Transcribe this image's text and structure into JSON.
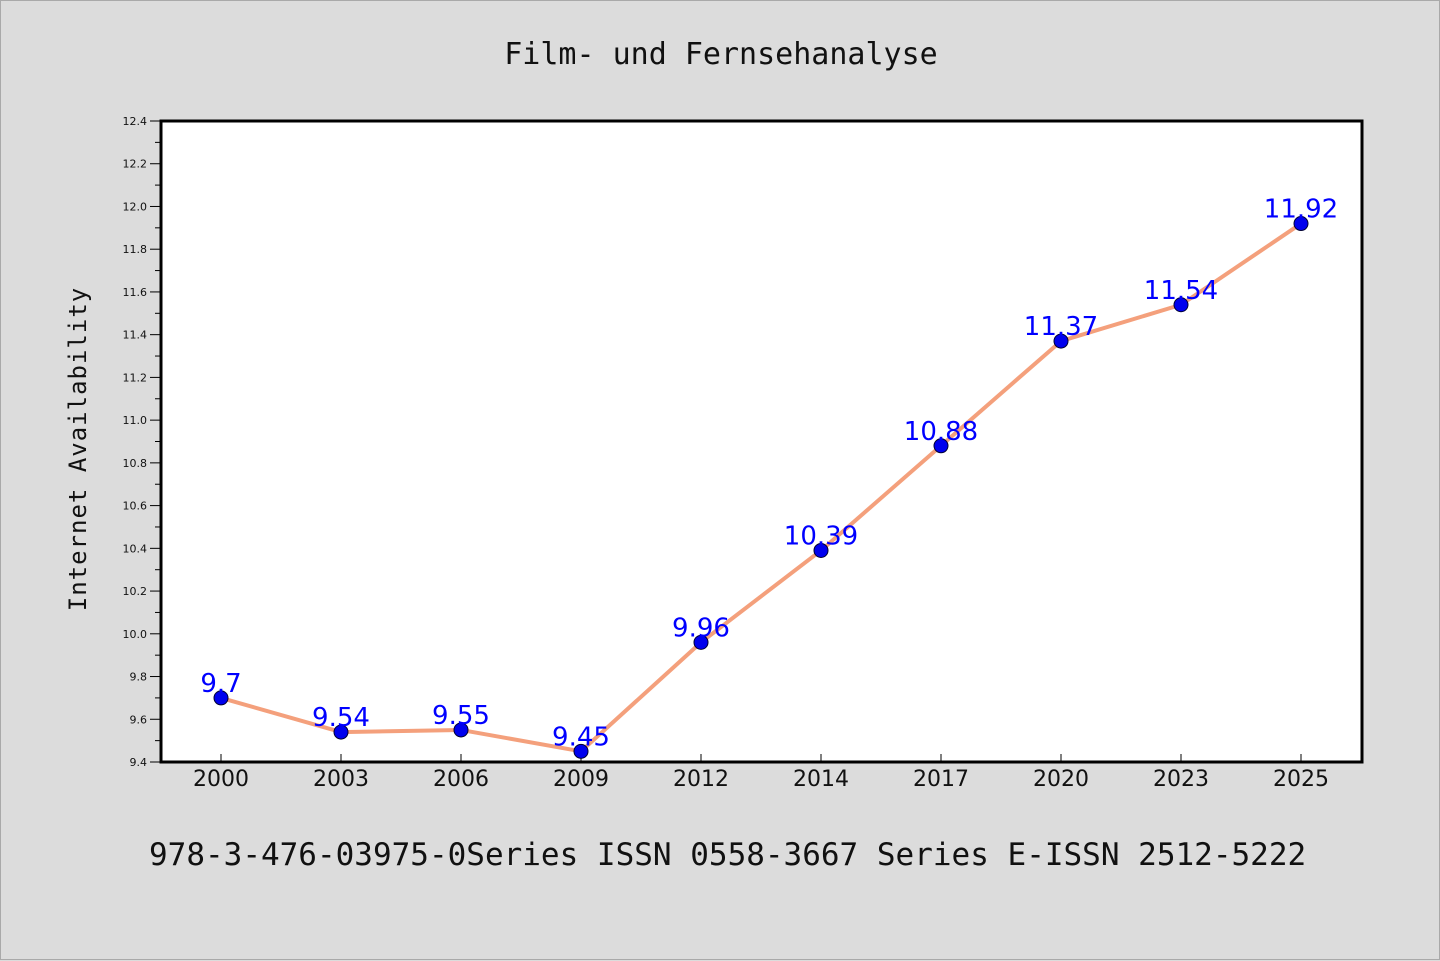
{
  "chart_data": {
    "type": "line",
    "title": "Film- und Fernsehanalyse",
    "xlabel": "",
    "ylabel": "Internet Availability",
    "categories": [
      "2000",
      "2003",
      "2006",
      "2009",
      "2012",
      "2014",
      "2017",
      "2020",
      "2023",
      "2025"
    ],
    "series": [
      {
        "values": [
          9.7,
          9.54,
          9.55,
          9.45,
          9.96,
          10.39,
          10.88,
          11.37,
          11.54,
          11.92
        ],
        "line_color": "#f4a07c",
        "marker_color": "#0000ee",
        "label_color": "#0000ff"
      }
    ],
    "data_labels": [
      "9.7",
      "9.54",
      "9.55",
      "9.45",
      "9.96",
      "10.39",
      "10.88",
      "11.37",
      "11.54",
      "11.92"
    ],
    "ylim": [
      9.4,
      12.4
    ],
    "y_ticks": [
      "9.4",
      "9.6",
      "9.8",
      "10.0",
      "10.2",
      "10.4",
      "10.6",
      "10.8",
      "11.0",
      "11.2",
      "11.4",
      "11.6",
      "11.8",
      "12.0",
      "12.2",
      "12.4"
    ],
    "grid": false,
    "legend": "none"
  },
  "footer": "978-3-476-03975-0Series ISSN 0558-3667 Series E-ISSN 2512-5222"
}
